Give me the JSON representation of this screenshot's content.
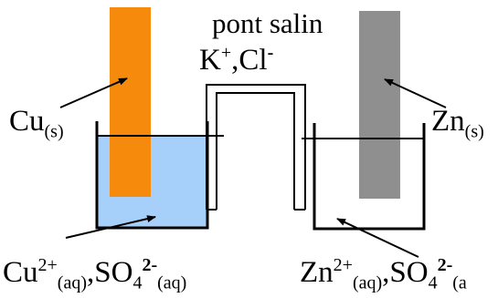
{
  "colors": {
    "copper": "#F58A0C",
    "zinc": "#8F8F8F",
    "solution": "#A6D0FA",
    "ink": "#000000"
  },
  "salt_bridge": {
    "title": "pont salin",
    "ion1": "K",
    "ion1_charge": "+",
    "separator": ",",
    "ion2": "Cl",
    "ion2_charge": "-"
  },
  "left_half_cell": {
    "electrode_symbol": "Cu",
    "electrode_state": "(s)",
    "ion_symbol": "Cu",
    "ion_charge": "2+",
    "ion_state": "(aq)",
    "separator": ",",
    "anion_symbol": "SO",
    "anion_subscript": "4",
    "anion_charge": "2-",
    "anion_state": "(aq)"
  },
  "right_half_cell": {
    "electrode_symbol": "Zn",
    "electrode_state": "(s)",
    "ion_symbol": "Zn",
    "ion_charge": "2+",
    "ion_state": "(aq)",
    "separator": ",",
    "anion_symbol": "SO",
    "anion_subscript": "4",
    "anion_charge": "2-",
    "anion_state": "(a"
  }
}
